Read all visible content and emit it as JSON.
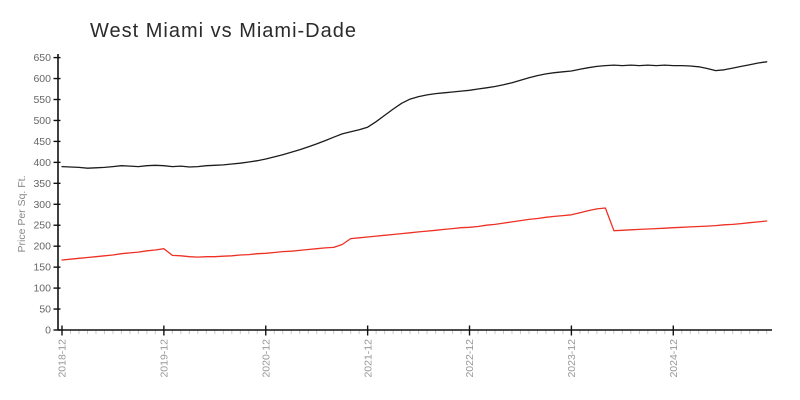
{
  "title": "West Miami vs Miami-Dade",
  "colors": {
    "background": "#ffffff",
    "axis": "#111111",
    "minor_tick": "#c9c9c9",
    "x_tick_label": "#999999",
    "y_tick_label": "#666666",
    "y_axis_title": "#888888",
    "title_text": "#2b2b2b",
    "series_black": "#1c1c1c",
    "series_red": "#ee3124"
  },
  "chart_data": {
    "type": "line",
    "title": "West Miami vs Miami-Dade",
    "xlabel": "",
    "ylabel": "Price Per Sq. Ft.",
    "grid": false,
    "legend_position": "none",
    "ylim": [
      0,
      650
    ],
    "y_ticks": [
      0,
      50,
      100,
      150,
      200,
      250,
      300,
      350,
      400,
      450,
      500,
      550,
      600,
      650
    ],
    "x_unit": "month",
    "x_range_start": "2018-12",
    "x_range_end": "2025-11",
    "x_tick_labels": [
      "2018-12",
      "2019-12",
      "2020-12",
      "2021-12",
      "2022-12",
      "2023-12",
      "2024-12"
    ],
    "x_major_tick_every": 12,
    "series": [
      {
        "name": "black-line",
        "color": "#1c1c1c",
        "values": [
          390,
          389,
          388,
          386,
          387,
          388,
          390,
          392,
          391,
          390,
          392,
          393,
          392,
          390,
          391,
          389,
          390,
          392,
          393,
          394,
          396,
          398,
          401,
          404,
          408,
          413,
          418,
          424,
          430,
          437,
          444,
          452,
          460,
          468,
          473,
          478,
          484,
          497,
          512,
          527,
          541,
          551,
          557,
          561,
          564,
          566,
          568,
          570,
          572,
          575,
          578,
          581,
          585,
          590,
          596,
          602,
          607,
          611,
          614,
          616,
          618,
          622,
          626,
          629,
          631,
          632,
          631,
          632,
          631,
          632,
          631,
          632,
          631,
          631,
          630,
          628,
          624,
          619,
          621,
          625,
          629,
          633,
          637,
          640
        ]
      },
      {
        "name": "red-line",
        "color": "#ee3124",
        "values": [
          167,
          169,
          171,
          173,
          175,
          177,
          179,
          182,
          184,
          186,
          189,
          191,
          194,
          178,
          177,
          175,
          174,
          175,
          175,
          176,
          177,
          179,
          180,
          182,
          183,
          185,
          187,
          188,
          190,
          192,
          194,
          196,
          197,
          204,
          218,
          220,
          222,
          224,
          226,
          228,
          230,
          232,
          234,
          236,
          238,
          240,
          242,
          244,
          245,
          247,
          250,
          252,
          255,
          258,
          261,
          264,
          266,
          269,
          271,
          273,
          275,
          280,
          285,
          289,
          291,
          237,
          238,
          239,
          240,
          241,
          242,
          243,
          244,
          245,
          246,
          247,
          248,
          249,
          251,
          252,
          254,
          256,
          258,
          260
        ]
      }
    ]
  }
}
